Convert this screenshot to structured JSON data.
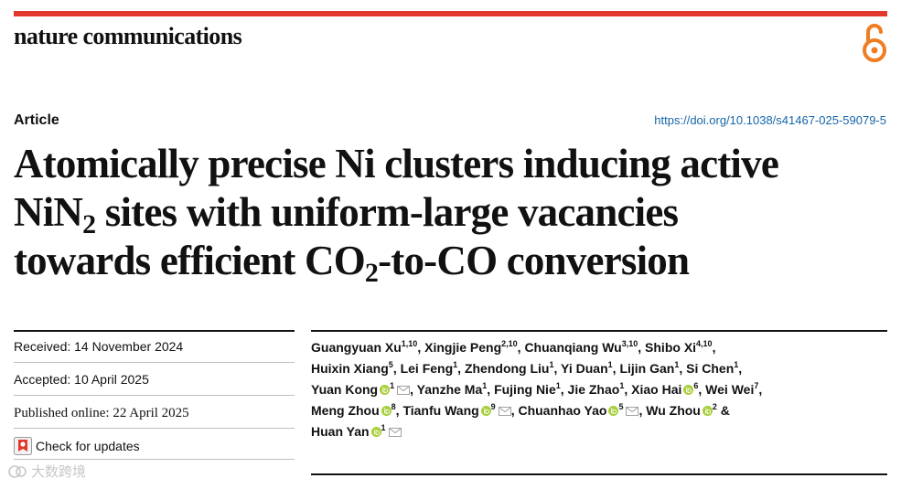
{
  "header": {
    "journal_name": "nature communications",
    "article_type": "Article",
    "doi": "https://doi.org/10.1038/s41467-025-59079-5"
  },
  "title_lines": [
    {
      "text": "Atomically precise Ni clusters inducing active"
    },
    {
      "pre": "NiN",
      "sub": "2",
      "post": " sites with uniform-large vacancies"
    },
    {
      "pre": "towards efficient CO",
      "sub": "2",
      "post": "-to-CO conversion"
    }
  ],
  "dates": {
    "received": "Received: 14 November 2024",
    "accepted": "Accepted: 10 April 2025",
    "published": "Published online: 22 April 2025"
  },
  "check_updates": "Check for updates",
  "watermark": "大数跨境",
  "author_lines": [
    [
      {
        "name": "Guangyuan Xu",
        "sup": "1,10",
        "sep": ", "
      },
      {
        "name": "Xingjie Peng",
        "sup": "2,10",
        "sep": ", "
      },
      {
        "name": "Chuanqiang Wu",
        "sup": "3,10",
        "sep": ", "
      },
      {
        "name": "Shibo Xi",
        "sup": "4,10",
        "sep": ","
      }
    ],
    [
      {
        "name": "Huixin Xiang",
        "sup": "5",
        "sep": ", "
      },
      {
        "name": "Lei Feng",
        "sup": "1",
        "sep": ", "
      },
      {
        "name": "Zhendong Liu",
        "sup": "1",
        "sep": ", "
      },
      {
        "name": "Yi Duan",
        "sup": "1",
        "sep": ", "
      },
      {
        "name": "Lijin Gan",
        "sup": "1",
        "sep": ", "
      },
      {
        "name": "Si Chen",
        "sup": "1",
        "sep": ","
      }
    ],
    [
      {
        "name": "Yuan Kong",
        "orcid": true,
        "sup": "1",
        "mail": true,
        "sep": ", "
      },
      {
        "name": "Yanzhe Ma",
        "sup": "1",
        "sep": ", "
      },
      {
        "name": "Fujing Nie",
        "sup": "1",
        "sep": ", "
      },
      {
        "name": "Jie Zhao",
        "sup": "1",
        "sep": ", "
      },
      {
        "name": "Xiao Hai",
        "orcid": true,
        "sup": "6",
        "sep": ", "
      },
      {
        "name": "Wei Wei",
        "sup": "7",
        "sep": ","
      }
    ],
    [
      {
        "name": "Meng Zhou",
        "orcid": true,
        "sup": "8",
        "sep": ", "
      },
      {
        "name": "Tianfu Wang",
        "orcid": true,
        "sup": "9",
        "mail": true,
        "sep": ", "
      },
      {
        "name": "Chuanhao Yao",
        "orcid": true,
        "sup": "5",
        "mail": true,
        "sep": ", "
      },
      {
        "name": "Wu Zhou",
        "orcid": true,
        "sup": "2",
        "sep": " &"
      }
    ],
    [
      {
        "name": "Huan Yan",
        "orcid": true,
        "sup": "1",
        "mail": true,
        "sep": ""
      }
    ]
  ],
  "colors": {
    "accent_rule": "#e2372c",
    "open_access": "#ef7d22",
    "doi_link": "#1565a8",
    "orcid": "#a6ce39"
  },
  "icons": {
    "open_access": "open-access-lock-icon",
    "orcid": "orcid-icon",
    "mail": "mail-icon",
    "updates": "crossmark-icon"
  }
}
